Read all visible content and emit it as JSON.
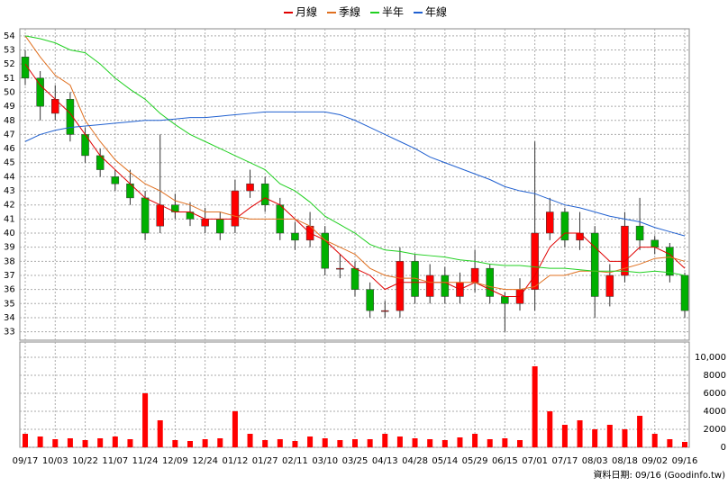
{
  "chart_data": {
    "type": "candlestick",
    "source": "資料日期: 09/16  (Goodinfo.tw)",
    "categories": [
      "09/17",
      null,
      "10/03",
      null,
      "10/22",
      null,
      "11/07",
      null,
      "11/24",
      null,
      "12/09",
      null,
      "12/24",
      null,
      "01/12",
      null,
      "01/27",
      null,
      "02/11",
      null,
      "03/10",
      null,
      "03/25",
      null,
      "04/13",
      null,
      "04/28",
      null,
      "05/14",
      null,
      "05/29",
      null,
      "06/15",
      null,
      "07/01",
      null,
      "07/17",
      null,
      "08/03",
      null,
      "08/18",
      null,
      "09/02",
      null,
      "09/16"
    ],
    "open": [
      52.5,
      51,
      48.5,
      49.5,
      47,
      45.5,
      44,
      43.5,
      42.5,
      40.5,
      42,
      41.5,
      40.5,
      41,
      40.5,
      43,
      43.5,
      42,
      40,
      39.5,
      40,
      37.5,
      37.5,
      36,
      34.5,
      34.5,
      38,
      35.5,
      37,
      35.5,
      36.5,
      37.5,
      35.5,
      35,
      36,
      40,
      41.5,
      39.5,
      40,
      35.5,
      37,
      40.5,
      39.5,
      39,
      37
    ],
    "high": [
      53,
      51.5,
      50.5,
      50,
      47.5,
      46,
      44.5,
      44.5,
      43,
      47,
      42.8,
      42.2,
      41.8,
      41.5,
      43.8,
      44.5,
      44,
      42.5,
      40.8,
      41.5,
      40.5,
      38.5,
      38,
      36.5,
      35.2,
      39,
      38.5,
      37.8,
      37.6,
      37.2,
      38.8,
      37.8,
      35.8,
      36.8,
      46.5,
      42.5,
      41.8,
      41.5,
      40.5,
      37.8,
      41.5,
      42.5,
      39.8,
      39.3,
      37.2
    ],
    "low": [
      50.5,
      48,
      48,
      46.5,
      45,
      44,
      43,
      42,
      39.5,
      40,
      41,
      40.5,
      40,
      39.5,
      40,
      42.5,
      41.5,
      39.5,
      38.8,
      39,
      37,
      36.8,
      35.5,
      34,
      34,
      34,
      35,
      35,
      35,
      35,
      35.8,
      35,
      33,
      34.5,
      34.5,
      39.5,
      39,
      38.8,
      34,
      34.8,
      36.5,
      38.8,
      38.5,
      36.5,
      34
    ],
    "close": [
      51,
      49,
      49.5,
      47,
      45.5,
      44.5,
      43.5,
      42.5,
      40,
      42,
      41.5,
      41,
      41,
      40,
      43,
      43.5,
      42,
      40,
      39.5,
      40.5,
      37.5,
      37.5,
      36,
      34.5,
      34.5,
      38,
      35.5,
      37,
      35.5,
      36.5,
      37.5,
      35.5,
      35,
      36,
      40,
      41.5,
      39.5,
      40,
      35.5,
      37,
      40.5,
      39.5,
      39,
      37,
      34.5
    ],
    "up_color": "#ff0000",
    "down_color": "#00b000",
    "ylim": [
      32.4,
      54.5
    ],
    "yticks": [
      33,
      34,
      35,
      36,
      37,
      38,
      39,
      40,
      41,
      42,
      43,
      44,
      45,
      46,
      47,
      48,
      49,
      50,
      51,
      52,
      53,
      54
    ],
    "grid": true,
    "series": [
      {
        "name": "月線",
        "color": "#e00000",
        "values": [
          52,
          50.5,
          49.5,
          48.5,
          47,
          45.5,
          44.5,
          43.5,
          42.5,
          42,
          41.5,
          41.5,
          41,
          41,
          41,
          41.8,
          42.5,
          42,
          41,
          40,
          39.5,
          38.5,
          37.5,
          37,
          36,
          36.5,
          36.5,
          36.5,
          36.5,
          36,
          36.5,
          36,
          35.5,
          35.5,
          37,
          39,
          40,
          40,
          39,
          38,
          38,
          39,
          39,
          38.5,
          37.5
        ]
      },
      {
        "name": "季線",
        "color": "#e07020",
        "values": [
          54,
          52.5,
          51.2,
          50.5,
          48,
          46.5,
          45.2,
          44.3,
          43.5,
          43,
          42.3,
          42,
          41.5,
          41.5,
          41.2,
          41,
          41,
          41,
          41,
          40.5,
          39.5,
          39,
          38.5,
          37.5,
          37,
          36.8,
          36.8,
          36.5,
          36.5,
          36.5,
          36.5,
          36.2,
          36,
          36,
          36.2,
          37,
          37,
          37.3,
          37.3,
          37.2,
          37.5,
          37.8,
          38.2,
          38.3,
          38
        ]
      },
      {
        "name": "半年",
        "color": "#20d020",
        "values": [
          54,
          53.8,
          53.5,
          53,
          52.8,
          52,
          51,
          50.2,
          49.5,
          48.5,
          47.7,
          47,
          46.5,
          46,
          45.5,
          45,
          44.5,
          43.5,
          43,
          42.2,
          41.2,
          40.6,
          40,
          39.2,
          38.8,
          38.7,
          38.5,
          38.4,
          38.3,
          38.1,
          38,
          37.8,
          37.7,
          37.7,
          37.6,
          37.5,
          37.5,
          37.4,
          37.3,
          37.3,
          37.3,
          37.2,
          37.3,
          37.2,
          37
        ]
      },
      {
        "name": "年線",
        "color": "#2060d0",
        "values": [
          46.5,
          47,
          47.3,
          47.5,
          47.6,
          47.7,
          47.8,
          47.9,
          48,
          48,
          48.1,
          48.2,
          48.2,
          48.3,
          48.4,
          48.5,
          48.6,
          48.6,
          48.6,
          48.6,
          48.6,
          48.4,
          48,
          47.5,
          47,
          46.5,
          46,
          45.4,
          45,
          44.6,
          44.2,
          43.8,
          43.3,
          43,
          42.8,
          42.4,
          42,
          41.8,
          41.5,
          41.2,
          41,
          40.8,
          40.4,
          40.1,
          39.8
        ]
      }
    ],
    "volume": {
      "color": "#ff0000",
      "values": [
        1500,
        1200,
        900,
        1000,
        800,
        1000,
        1200,
        900,
        6000,
        3000,
        800,
        700,
        900,
        1000,
        4000,
        1500,
        800,
        900,
        700,
        1200,
        1000,
        800,
        900,
        900,
        1500,
        1200,
        1000,
        900,
        800,
        1100,
        1500,
        900,
        1000,
        800,
        9000,
        4000,
        2500,
        3000,
        2000,
        2500,
        2000,
        3500,
        1500,
        900,
        600
      ],
      "ylim": [
        0,
        11700
      ],
      "yticks": [
        0,
        2000,
        4000,
        6000,
        8000,
        {
          "value": 10000,
          "label": "10,000"
        }
      ]
    }
  }
}
